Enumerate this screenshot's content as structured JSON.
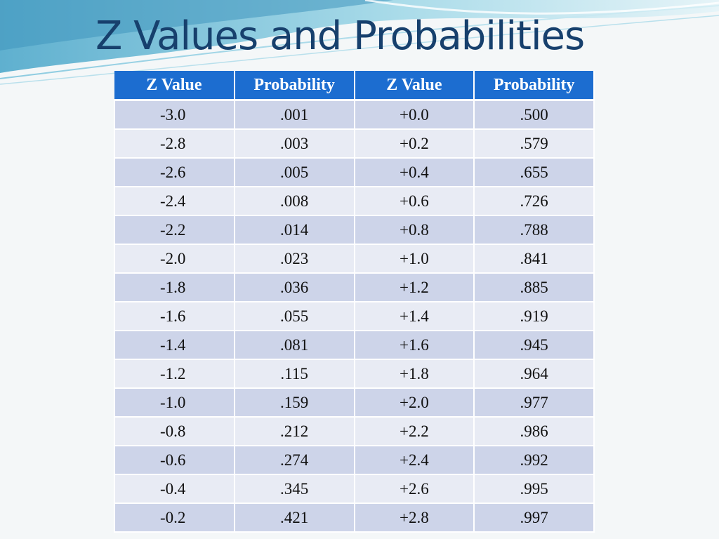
{
  "slide": {
    "title": "Z Values and Probabilities",
    "colors": {
      "title": "#17406d",
      "header_bg": "#1c6dd0",
      "row_odd": "#cdd4e9",
      "row_even": "#e8ebf4",
      "swoosh": "#7fc3d8"
    }
  },
  "table": {
    "headers": [
      "Z Value",
      "Probability",
      "Z Value",
      "Probability"
    ],
    "rows": [
      [
        "-3.0",
        ".001",
        "+0.0",
        ".500"
      ],
      [
        "-2.8",
        ".003",
        "+0.2",
        ".579"
      ],
      [
        "-2.6",
        ".005",
        "+0.4",
        ".655"
      ],
      [
        "-2.4",
        ".008",
        "+0.6",
        ".726"
      ],
      [
        "-2.2",
        ".014",
        "+0.8",
        ".788"
      ],
      [
        "-2.0",
        ".023",
        "+1.0",
        ".841"
      ],
      [
        "-1.8",
        ".036",
        "+1.2",
        ".885"
      ],
      [
        "-1.6",
        ".055",
        "+1.4",
        ".919"
      ],
      [
        "-1.4",
        ".081",
        "+1.6",
        ".945"
      ],
      [
        "-1.2",
        ".115",
        "+1.8",
        ".964"
      ],
      [
        "-1.0",
        ".159",
        "+2.0",
        ".977"
      ],
      [
        "-0.8",
        ".212",
        "+2.2",
        ".986"
      ],
      [
        "-0.6",
        ".274",
        "+2.4",
        ".992"
      ],
      [
        "-0.4",
        ".345",
        "+2.6",
        ".995"
      ],
      [
        "-0.2",
        ".421",
        "+2.8",
        ".997"
      ]
    ]
  }
}
